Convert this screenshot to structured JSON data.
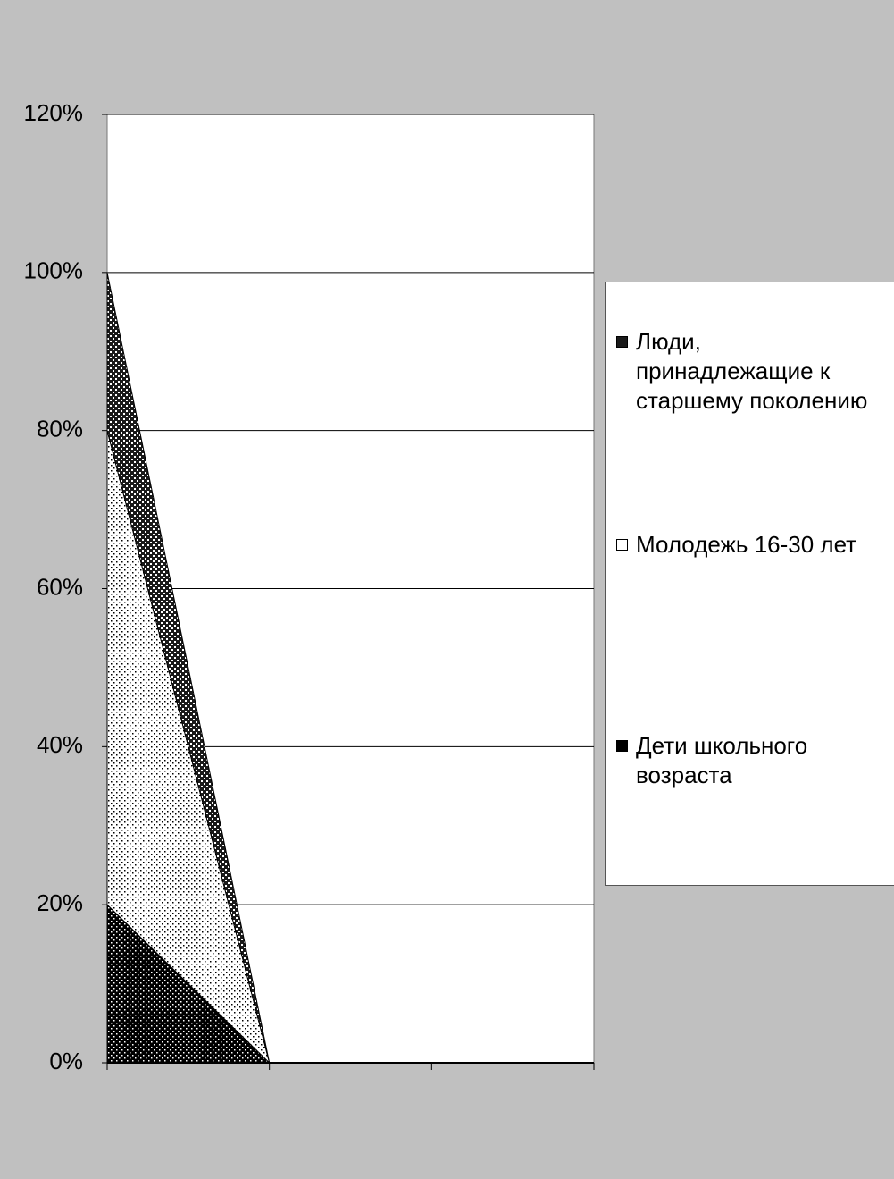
{
  "chart_data": {
    "type": "area",
    "stacked": true,
    "categories": [
      null,
      null,
      null,
      null
    ],
    "series": [
      {
        "name": "Дети школьного возраста",
        "color": "#000000",
        "values": [
          20,
          0,
          0,
          0
        ]
      },
      {
        "name": "Молодежь 16-30 лет",
        "color": "#ffffff",
        "values": [
          60,
          0,
          0,
          0
        ]
      },
      {
        "name": "Люди, принадлежащие к старшему поколению",
        "color": "#1a1a1a",
        "values": [
          20,
          0,
          0,
          0
        ]
      }
    ],
    "ylim": [
      0,
      120
    ],
    "yticks": [
      {
        "value": 0,
        "label": "0%"
      },
      {
        "value": 20,
        "label": "20%"
      },
      {
        "value": 40,
        "label": "40%"
      },
      {
        "value": 60,
        "label": "60%"
      },
      {
        "value": 80,
        "label": "80%"
      },
      {
        "value": 100,
        "label": "100%"
      },
      {
        "value": 120,
        "label": "120%"
      }
    ],
    "grid": true,
    "legend": "right"
  }
}
